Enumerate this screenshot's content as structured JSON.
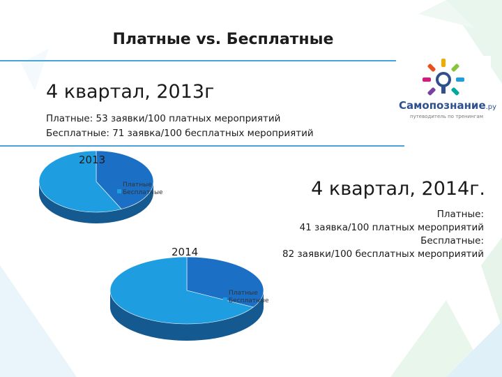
{
  "slide": {
    "title": "Платные vs. Бесплатные",
    "q2013": {
      "heading": "4 квартал, 2013г",
      "line1": "Платные: 53 заявки/100 платных мероприятий",
      "line2": "Бесплатные: 71 заявка/100 бесплатных мероприятий"
    },
    "q2014": {
      "heading": "4 квартал, 2014г.",
      "line1": "Платные:",
      "line2": "41 заявка/100 платных мероприятий",
      "line3": "Бесплатные:",
      "line4": "82 заявки/100 бесплатных мероприятий"
    }
  },
  "logo": {
    "name": "Самопознание",
    "suffix": ".ру",
    "tagline": "путеводитель по тренингам"
  },
  "colors": {
    "paid": "#1b6fc4",
    "free": "#1e9ee0",
    "side": "#14598f",
    "accent": "#4aa3d8"
  },
  "chart_data": [
    {
      "type": "pie",
      "title": "2013",
      "categories": [
        "Платные",
        "Бесплатные"
      ],
      "values": [
        53,
        71
      ],
      "legend": "right"
    },
    {
      "type": "pie",
      "title": "2014",
      "categories": [
        "Платные",
        "Бесплатные"
      ],
      "values": [
        41,
        82
      ],
      "legend": "right"
    }
  ]
}
